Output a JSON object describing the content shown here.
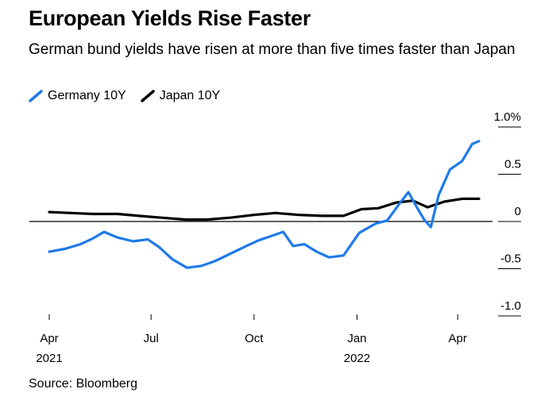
{
  "title": "European Yields Rise Faster",
  "subtitle": "German bund yields have risen at more than five times faster than Japan",
  "source": "Source: Bloomberg",
  "colors": {
    "germany": "#1f7ae8",
    "japan": "#000000",
    "axis": "#000000"
  },
  "chart_data": {
    "type": "line",
    "title": "European Yields Rise Faster",
    "ylabel": "",
    "xlabel": "",
    "ylim": [
      -1.0,
      1.0
    ],
    "y_ticks": [
      {
        "value": 1.0,
        "label": "1.0%"
      },
      {
        "value": 0.5,
        "label": "0.5"
      },
      {
        "value": 0,
        "label": "0"
      },
      {
        "value": -0.5,
        "label": "-0.5"
      },
      {
        "value": -1.0,
        "label": "-1.0"
      }
    ],
    "x_range": [
      "2021-04-01",
      "2022-04-20"
    ],
    "x_ticks": [
      {
        "date": "2021-04-01",
        "label": "Apr",
        "year": "2021"
      },
      {
        "date": "2021-07-01",
        "label": "Jul",
        "year": ""
      },
      {
        "date": "2021-10-01",
        "label": "Oct",
        "year": ""
      },
      {
        "date": "2022-01-01",
        "label": "Jan",
        "year": "2022"
      },
      {
        "date": "2022-04-01",
        "label": "Apr",
        "year": ""
      }
    ],
    "legend": "top-left",
    "series": [
      {
        "name": "Germany 10Y",
        "color": "#1f7ae8",
        "points": [
          [
            "2021-04-01",
            -0.32
          ],
          [
            "2021-04-15",
            -0.29
          ],
          [
            "2021-04-29",
            -0.24
          ],
          [
            "2021-05-10",
            -0.18
          ],
          [
            "2021-05-20",
            -0.11
          ],
          [
            "2021-06-01",
            -0.17
          ],
          [
            "2021-06-15",
            -0.21
          ],
          [
            "2021-06-28",
            -0.19
          ],
          [
            "2021-07-08",
            -0.27
          ],
          [
            "2021-07-20",
            -0.4
          ],
          [
            "2021-08-02",
            -0.49
          ],
          [
            "2021-08-15",
            -0.47
          ],
          [
            "2021-08-27",
            -0.42
          ],
          [
            "2021-09-10",
            -0.34
          ],
          [
            "2021-09-24",
            -0.26
          ],
          [
            "2021-10-05",
            -0.2
          ],
          [
            "2021-10-15",
            -0.16
          ],
          [
            "2021-10-27",
            -0.11
          ],
          [
            "2021-11-05",
            -0.26
          ],
          [
            "2021-11-15",
            -0.24
          ],
          [
            "2021-11-26",
            -0.32
          ],
          [
            "2021-12-07",
            -0.38
          ],
          [
            "2021-12-20",
            -0.36
          ],
          [
            "2022-01-03",
            -0.12
          ],
          [
            "2022-01-18",
            -0.02
          ],
          [
            "2022-01-28",
            0.01
          ],
          [
            "2022-02-08",
            0.19
          ],
          [
            "2022-02-16",
            0.31
          ],
          [
            "2022-02-24",
            0.14
          ],
          [
            "2022-03-02",
            0.02
          ],
          [
            "2022-03-08",
            -0.06
          ],
          [
            "2022-03-15",
            0.28
          ],
          [
            "2022-03-25",
            0.55
          ],
          [
            "2022-04-05",
            0.64
          ],
          [
            "2022-04-14",
            0.82
          ],
          [
            "2022-04-20",
            0.85
          ]
        ]
      },
      {
        "name": "Japan 10Y",
        "color": "#000000",
        "points": [
          [
            "2021-04-01",
            0.1
          ],
          [
            "2021-04-20",
            0.09
          ],
          [
            "2021-05-10",
            0.08
          ],
          [
            "2021-06-01",
            0.08
          ],
          [
            "2021-06-20",
            0.06
          ],
          [
            "2021-07-10",
            0.04
          ],
          [
            "2021-08-01",
            0.02
          ],
          [
            "2021-08-20",
            0.02
          ],
          [
            "2021-09-10",
            0.04
          ],
          [
            "2021-10-01",
            0.07
          ],
          [
            "2021-10-20",
            0.09
          ],
          [
            "2021-11-10",
            0.07
          ],
          [
            "2021-12-01",
            0.06
          ],
          [
            "2021-12-20",
            0.06
          ],
          [
            "2022-01-05",
            0.13
          ],
          [
            "2022-01-20",
            0.14
          ],
          [
            "2022-02-05",
            0.2
          ],
          [
            "2022-02-20",
            0.22
          ],
          [
            "2022-03-05",
            0.15
          ],
          [
            "2022-03-20",
            0.21
          ],
          [
            "2022-04-05",
            0.24
          ],
          [
            "2022-04-20",
            0.24
          ]
        ]
      }
    ]
  }
}
